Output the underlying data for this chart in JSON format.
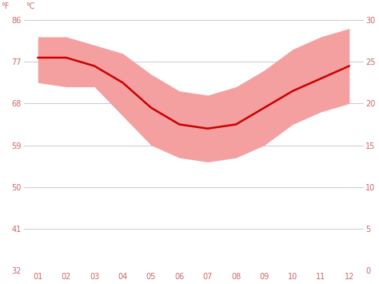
{
  "months": [
    1,
    2,
    3,
    4,
    5,
    6,
    7,
    8,
    9,
    10,
    11,
    12
  ],
  "month_labels": [
    "01",
    "02",
    "03",
    "04",
    "05",
    "06",
    "07",
    "08",
    "09",
    "10",
    "11",
    "12"
  ],
  "avg_temp_f": [
    77.9,
    77.9,
    76.1,
    72.5,
    67.1,
    63.5,
    62.6,
    63.5,
    67.1,
    70.7,
    73.4,
    76.1
  ],
  "max_temp_f": [
    82.4,
    82.4,
    80.6,
    78.8,
    74.3,
    70.7,
    69.8,
    71.6,
    75.2,
    79.7,
    82.4,
    84.2
  ],
  "min_temp_f": [
    72.5,
    71.6,
    71.6,
    65.3,
    59.0,
    56.3,
    55.4,
    56.3,
    59.0,
    63.5,
    66.2,
    68.0
  ],
  "line_color": "#cc0000",
  "band_color": "#f4a0a0",
  "background_color": "#ffffff",
  "grid_color": "#cccccc",
  "tick_color": "#cc6666",
  "ylim_f": [
    32,
    86
  ],
  "yticks_f": [
    32,
    41,
    50,
    59,
    68,
    77,
    86
  ],
  "yticks_f_labels": [
    "32",
    "41",
    "50",
    "59",
    "68",
    "77",
    "86"
  ],
  "yticks_c": [
    0,
    5,
    10,
    15,
    20,
    25,
    30
  ],
  "yticks_c_labels": [
    "0",
    "5",
    "10",
    "15",
    "20",
    "25",
    "30"
  ]
}
